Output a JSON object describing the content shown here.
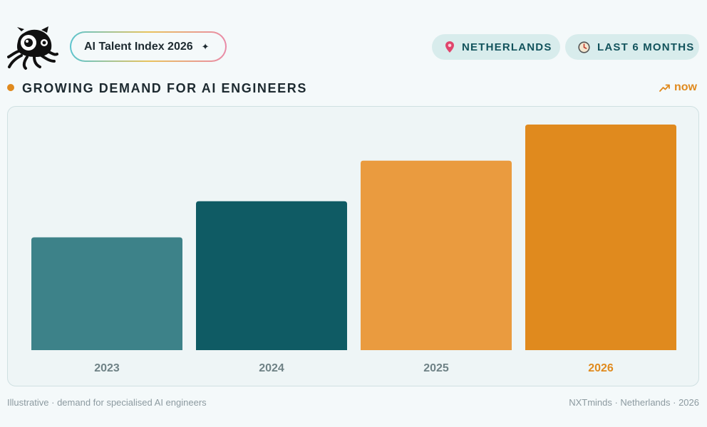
{
  "header": {
    "index_label": "AI Talent Index 2026",
    "filters": {
      "country": "NETHERLANDS",
      "period": "LAST 6 MONTHS"
    }
  },
  "section": {
    "title": "GROWING DEMAND FOR AI ENGINEERS",
    "trend_label": "now"
  },
  "colors": {
    "accent": "#e08a1e",
    "teal_dark": "#0f5b64",
    "teal_mid": "#3d8289",
    "orange_light": "#ea9b3f",
    "orange": "#e08a1e"
  },
  "icons": {
    "logo": "octopus-detective-logo",
    "index_badge": "sparkle-icon",
    "country": "map-pin-icon",
    "period": "clock-icon",
    "trend": "trending-up-icon"
  },
  "chart_data": {
    "type": "bar",
    "title": "GROWING DEMAND FOR AI ENGINEERS",
    "categories": [
      "2023",
      "2024",
      "2025",
      "2026"
    ],
    "values": [
      50,
      66,
      84,
      100
    ],
    "ylim": [
      0,
      100
    ],
    "grid": false,
    "legend": "none",
    "bar_colors": [
      "#3d8289",
      "#0f5b64",
      "#ea9b3f",
      "#e08a1e"
    ],
    "label_colors": [
      "#6f8286",
      "#6f8286",
      "#6f8286",
      "#e08a1e"
    ]
  },
  "footer": {
    "note": "Illustrative · demand for specialised AI engineers",
    "credit": "NXTminds · Netherlands · 2026"
  }
}
